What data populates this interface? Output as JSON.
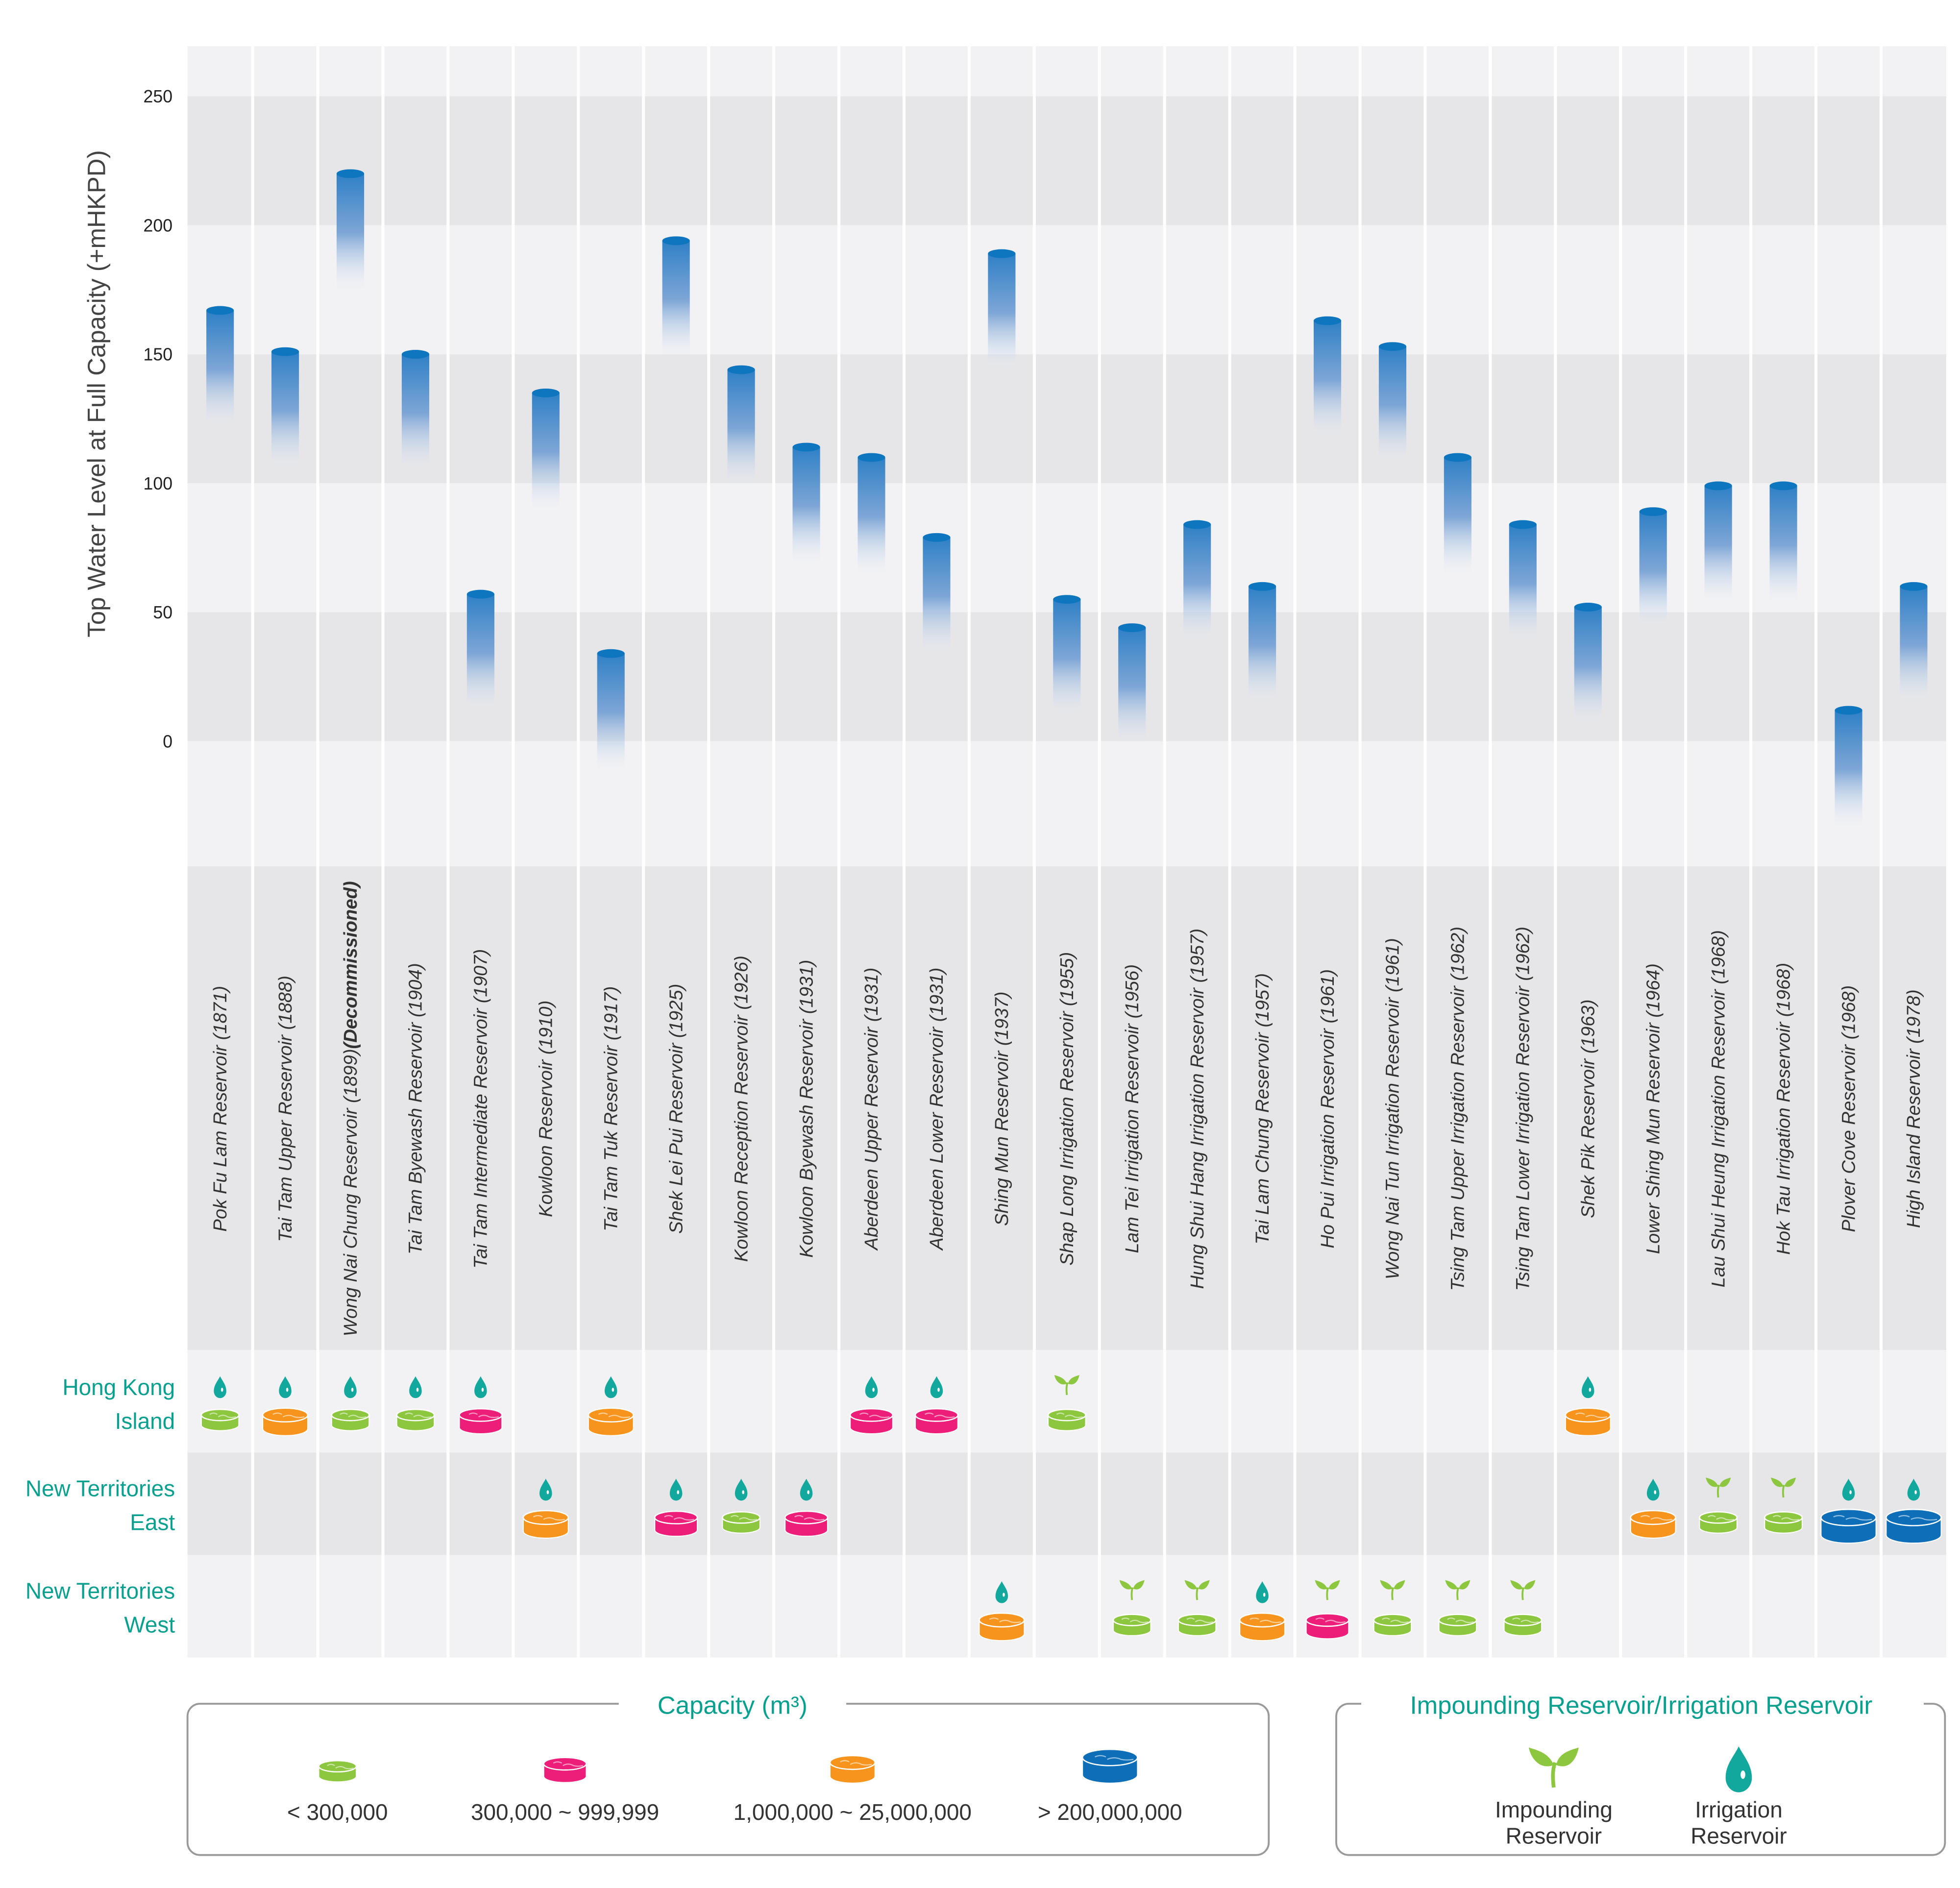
{
  "chart_data": {
    "type": "bar",
    "ylabel": "Top Water Level at Full Capacity  (+mHKPD)",
    "yticks": [
      0,
      50,
      100,
      150,
      200,
      250
    ],
    "ylim": [
      -50,
      270
    ],
    "grid": "horizontal bands",
    "categories": [
      "Pok Fu Lam Reservoir (1871)",
      "Tai Tam Upper Reservoir (1888)",
      "Wong Nai Chung Reservoir (1899)",
      "Tai Tam Byewash Reservoir (1904)",
      "Tai Tam Intermediate Reservoir (1907)",
      "Kowloon Reservoir (1910)",
      "Tai Tam Tuk Reservoir (1917)",
      "Shek Lei Pui Reservoir (1925)",
      "Kowloon Reception Reservoir (1926)",
      "Kowloon Byewash Reservoir (1931)",
      "Aberdeen Upper Reservoir  (1931)",
      "Aberdeen Lower Reservoir (1931)",
      "Shing Mun Reservoir (1937)",
      "Shap Long Irrigation Reservoir (1955)",
      "Lam Tei Irrigation Reservoir (1956)",
      "Hung Shui Hang Irrigation Reservoir (1957)",
      "Tai Lam Chung Reservoir (1957)",
      "Ho Pui Irrigation Reservoir (1961)",
      "Wong Nai Tun Irrigation Reservoir (1961)",
      "Tsing Tam Upper Irrigation Reservoir (1962)",
      "Tsing Tam Lower Irrigation Reservoir (1962)",
      "Shek Pik Reservoir (1963)",
      "Lower Shing Mun Reservoir (1964)",
      "Lau Shui Heung Irrigation Reservoir (1968)",
      "Hok Tau Irrigation Reservoir (1968)",
      "Plover Cove Reservoir (1968)",
      "High Island Reservoir (1978)"
    ],
    "name_suffix": {
      "2": "(Decommissioned)"
    },
    "values": [
      167,
      151,
      220,
      150,
      57,
      135,
      34,
      194,
      144,
      114,
      110,
      79,
      189,
      55,
      44,
      84,
      60,
      163,
      153,
      110,
      84,
      52,
      89,
      99,
      99,
      12,
      60
    ],
    "region": [
      "HKI",
      "HKI",
      "HKI",
      "HKI",
      "HKI",
      "NTE",
      "HKI",
      "NTE",
      "NTE",
      "NTE",
      "HKI",
      "HKI",
      "NTW",
      "HKI",
      "NTW",
      "NTW",
      "NTW",
      "NTW",
      "NTW",
      "NTW",
      "NTW",
      "HKI",
      "NTE",
      "NTE",
      "NTE",
      "NTE",
      "NTE"
    ],
    "capacity_class": [
      "small",
      "mid",
      "small",
      "small",
      "low",
      "mid",
      "mid",
      "low",
      "small",
      "low",
      "low",
      "low",
      "mid",
      "small",
      "small",
      "small",
      "mid",
      "low",
      "small",
      "small",
      "small",
      "mid",
      "mid",
      "small",
      "small",
      "huge",
      "huge"
    ],
    "kind": [
      "drop",
      "drop",
      "drop",
      "drop",
      "drop",
      "drop",
      "drop",
      "drop",
      "drop",
      "drop",
      "drop",
      "drop",
      "drop",
      "sprout",
      "sprout",
      "sprout",
      "drop",
      "sprout",
      "sprout",
      "sprout",
      "sprout",
      "drop",
      "drop",
      "sprout",
      "sprout",
      "drop",
      "drop"
    ]
  },
  "regions": [
    {
      "key": "HKI",
      "line1": "Hong Kong",
      "line2": "Island"
    },
    {
      "key": "NTE",
      "line1": "New Territories",
      "line2": "East"
    },
    {
      "key": "NTW",
      "line1": "New Territories",
      "line2": "West"
    }
  ],
  "colors": {
    "bar": "#0e75bf",
    "small": "#8dc63f",
    "low": "#ec1e79",
    "mid": "#f7941d",
    "huge": "#0e6fb8",
    "teal": "#12a89d",
    "band_light": "#f2f2f4",
    "band_dark": "#e6e6e8"
  },
  "legend_capacity": {
    "title": "Capacity (m³)",
    "items": [
      {
        "key": "small",
        "label": "< 300,000"
      },
      {
        "key": "low",
        "label": "300,000 ~ 999,999"
      },
      {
        "key": "mid",
        "label": "1,000,000 ~ 25,000,000"
      },
      {
        "key": "huge",
        "label": "> 200,000,000"
      }
    ]
  },
  "legend_type": {
    "title": "Impounding Reservoir/Irrigation Reservoir",
    "impounding_line1": "Impounding",
    "impounding_line2": "Reservoir",
    "irrigation_line1": "Irrigation",
    "irrigation_line2": "Reservoir"
  }
}
